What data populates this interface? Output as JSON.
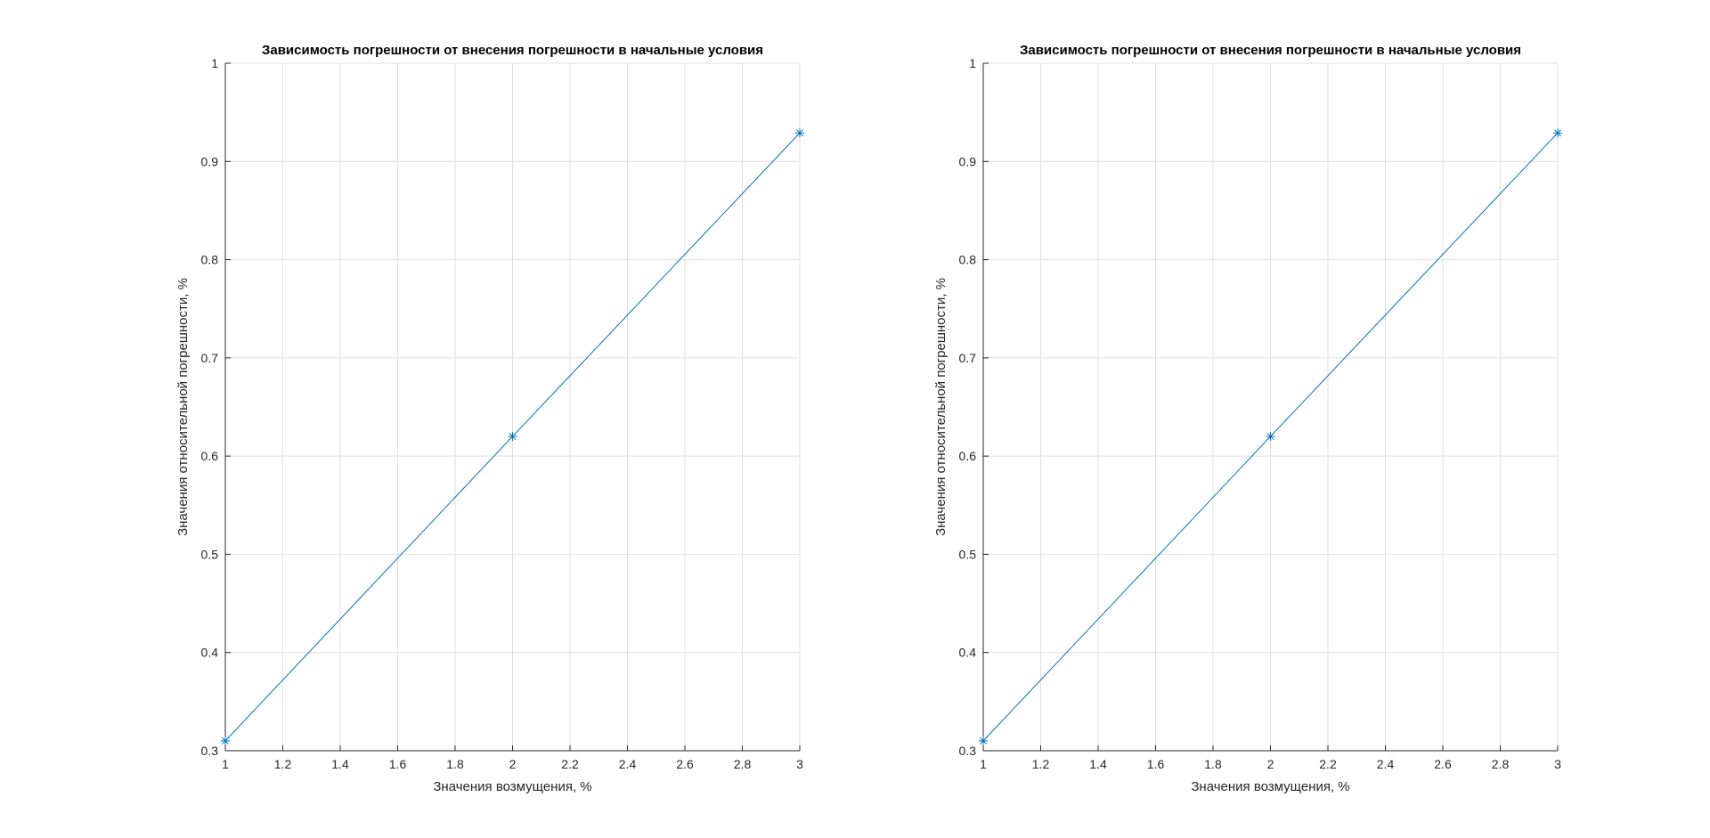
{
  "chart_data": [
    {
      "type": "line",
      "title": "Зависимость погрешности от внесения погрешности в начальные условия",
      "xlabel": "Значения возмущения, %",
      "ylabel": "Значения относительной погрешности, %",
      "xlim": [
        1,
        3
      ],
      "ylim": [
        0.3,
        1
      ],
      "xticks": [
        1,
        1.2,
        1.4,
        1.6,
        1.8,
        2,
        2.2,
        2.4,
        2.6,
        2.8,
        3
      ],
      "yticks": [
        0.3,
        0.4,
        0.5,
        0.6,
        0.7,
        0.8,
        0.9,
        1
      ],
      "x_tick_labels": [
        "1",
        "1.2",
        "1.4",
        "1.6",
        "1.8",
        "2",
        "2.2",
        "2.4",
        "2.6",
        "2.8",
        "3"
      ],
      "y_tick_labels": [
        "0.3",
        "0.4",
        "0.5",
        "0.6",
        "0.7",
        "0.8",
        "0.9",
        "1"
      ],
      "grid": true,
      "series": [
        {
          "x": [
            1,
            2,
            3
          ],
          "y": [
            0.31,
            0.62,
            0.929
          ],
          "marker": "asterisk",
          "color": "#0072BD"
        }
      ]
    },
    {
      "type": "line",
      "title": "Зависимость погрешности от внесения погрешности в начальные условия",
      "xlabel": "Значения возмущения, %",
      "ylabel": "Значения относительной погрешности, %",
      "xlim": [
        1,
        3
      ],
      "ylim": [
        0.3,
        1
      ],
      "xticks": [
        1,
        1.2,
        1.4,
        1.6,
        1.8,
        2,
        2.2,
        2.4,
        2.6,
        2.8,
        3
      ],
      "yticks": [
        0.3,
        0.4,
        0.5,
        0.6,
        0.7,
        0.8,
        0.9,
        1
      ],
      "x_tick_labels": [
        "1",
        "1.2",
        "1.4",
        "1.6",
        "1.8",
        "2",
        "2.2",
        "2.4",
        "2.6",
        "2.8",
        "3"
      ],
      "y_tick_labels": [
        "0.3",
        "0.4",
        "0.5",
        "0.6",
        "0.7",
        "0.8",
        "0.9",
        "1"
      ],
      "grid": true,
      "series": [
        {
          "x": [
            1,
            2,
            3
          ],
          "y": [
            0.31,
            0.62,
            0.929
          ],
          "marker": "asterisk",
          "color": "#0072BD"
        }
      ]
    }
  ]
}
